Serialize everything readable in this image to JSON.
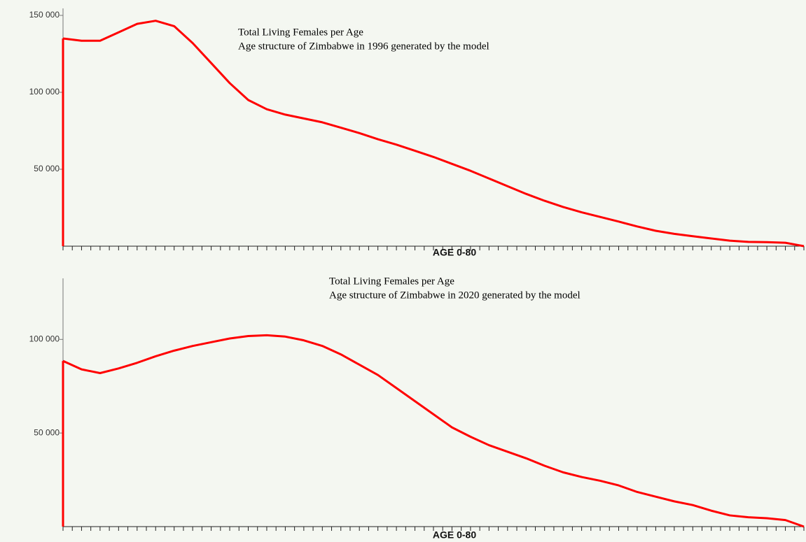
{
  "chart_data": [
    {
      "type": "line",
      "title": "Total Living Females per Age",
      "subtitle": "Age structure of Zimbabwe in 1996 generated by the model",
      "x_label": "AGE 0-80",
      "x": [
        0,
        2,
        4,
        6,
        8,
        10,
        12,
        14,
        16,
        18,
        20,
        22,
        24,
        26,
        28,
        30,
        32,
        34,
        36,
        38,
        40,
        42,
        44,
        46,
        48,
        50,
        52,
        54,
        56,
        58,
        60,
        62,
        64,
        66,
        68,
        70,
        72,
        74,
        76,
        78,
        80
      ],
      "series": [
        {
          "color": "#ff0000",
          "values": [
            135000,
            133500,
            133500,
            139000,
            144500,
            146500,
            143000,
            132000,
            119000,
            106000,
            95000,
            89000,
            85500,
            83000,
            80500,
            77000,
            73500,
            69500,
            66000,
            62000,
            58000,
            53500,
            49000,
            44000,
            39000,
            34000,
            29500,
            25500,
            22000,
            19000,
            16000,
            12800,
            10000,
            8000,
            6500,
            5000,
            3600,
            2800,
            2600,
            2200,
            0
          ]
        }
      ],
      "xlim": [
        0,
        80
      ],
      "xticks": [
        0,
        1,
        2,
        3,
        4,
        5,
        6,
        7,
        8,
        9,
        10,
        11,
        12,
        13,
        14,
        15,
        16,
        17,
        18,
        19,
        20,
        21,
        22,
        23,
        24,
        25,
        26,
        27,
        28,
        29,
        30,
        31,
        32,
        33,
        34,
        35,
        36,
        37,
        38,
        39,
        40,
        41,
        42,
        43,
        44,
        45,
        46,
        47,
        48,
        49,
        50,
        51,
        52,
        53,
        54,
        55,
        56,
        57,
        58,
        59,
        60,
        61,
        62,
        63,
        64,
        65,
        66,
        67,
        68,
        69,
        70,
        71,
        72,
        73,
        74,
        75,
        76,
        77,
        78,
        79,
        80
      ],
      "ylim": [
        0,
        150000
      ],
      "yticks": [
        {
          "value": 50000,
          "label": "50 000"
        },
        {
          "value": 100000,
          "label": "100 000"
        },
        {
          "value": 150000,
          "label": "150 000"
        }
      ]
    },
    {
      "type": "line",
      "title": "Total Living Females per Age",
      "subtitle": "Age structure of Zimbabwe in 2020 generated by the model",
      "x_label": "AGE 0-80",
      "x": [
        0,
        2,
        4,
        6,
        8,
        10,
        12,
        14,
        16,
        18,
        20,
        22,
        24,
        26,
        28,
        30,
        32,
        34,
        36,
        38,
        40,
        42,
        44,
        46,
        48,
        50,
        52,
        54,
        56,
        58,
        60,
        62,
        64,
        66,
        68,
        70,
        72,
        74,
        76,
        78,
        80
      ],
      "series": [
        {
          "color": "#ff0000",
          "values": [
            88500,
            84000,
            82000,
            84500,
            87500,
            91000,
            94000,
            96500,
            98500,
            100500,
            101800,
            102200,
            101500,
            99500,
            96500,
            92000,
            86500,
            81000,
            74000,
            67000,
            60000,
            53000,
            48000,
            43500,
            40000,
            36500,
            32500,
            29000,
            26500,
            24500,
            22000,
            18500,
            16000,
            13500,
            11500,
            8500,
            6000,
            5000,
            4500,
            3500,
            0
          ]
        }
      ],
      "xlim": [
        0,
        80
      ],
      "xticks": [
        0,
        1,
        2,
        3,
        4,
        5,
        6,
        7,
        8,
        9,
        10,
        11,
        12,
        13,
        14,
        15,
        16,
        17,
        18,
        19,
        20,
        21,
        22,
        23,
        24,
        25,
        26,
        27,
        28,
        29,
        30,
        31,
        32,
        33,
        34,
        35,
        36,
        37,
        38,
        39,
        40,
        41,
        42,
        43,
        44,
        45,
        46,
        47,
        48,
        49,
        50,
        51,
        52,
        53,
        54,
        55,
        56,
        57,
        58,
        59,
        60,
        61,
        62,
        63,
        64,
        65,
        66,
        67,
        68,
        69,
        70,
        71,
        72,
        73,
        74,
        75,
        76,
        77,
        78,
        79,
        80
      ],
      "ylim": [
        0,
        130000
      ],
      "yticks": [
        {
          "value": 50000,
          "label": "50 000"
        },
        {
          "value": 100000,
          "label": "100 000"
        }
      ]
    }
  ]
}
